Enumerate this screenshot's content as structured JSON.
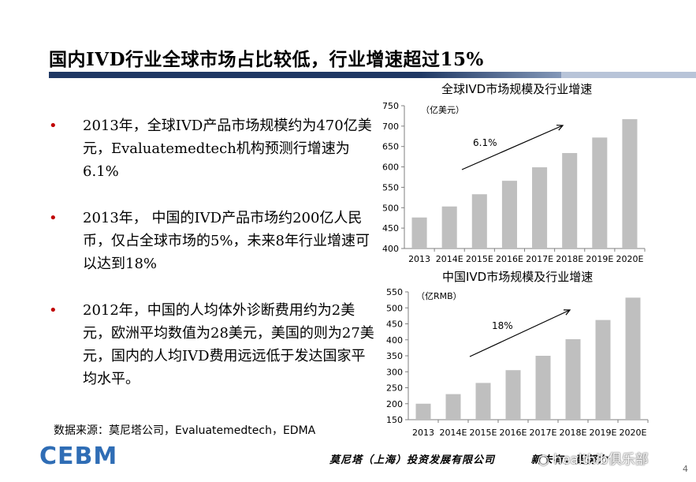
{
  "slide": {
    "title": "国内IVD行业全球市场占比较低，行业增速超过15%"
  },
  "bullets": [
    {
      "marker": "•",
      "text": "2013年，全球IVD产品市场规模约为470亿美元，Evaluatemedtech机构预测行增速为6.1%"
    },
    {
      "marker": "•",
      "text": "2013年， 中国的IVD产品市场约200亿人民币，仅占全球市场的5%，未来8年行业增速可以达到18%"
    },
    {
      "marker": "•",
      "text": "2012年，中国的人均体外诊断费用约为2美元，欧洲平均数值为28美元，美国的则为27美元，国内的人均IVD费用远远低于发达国家平均水平。"
    }
  ],
  "source_note": "数据来源：莫尼塔公司，Evaluatemedtech，EDMA",
  "footer": {
    "logo_text": "CEBM",
    "company": "莫尼塔（上海）投资发展有限公司",
    "slogan_tail": "新未有，更努力",
    "watermark": "healthib俱乐部",
    "page_number": "4"
  },
  "colors": {
    "bar": "#bfbfbf",
    "title_rule": "#1f3864",
    "bullet_marker": "#c00000",
    "axis": "#7f7f7f"
  },
  "chart_data": [
    {
      "type": "bar",
      "title": "全球IVD市场规模及行业增速",
      "unit_label": "（亿美元）",
      "categories": [
        "2013",
        "2014E",
        "2015E",
        "2016E",
        "2017E",
        "2018E",
        "2019E",
        "2020E"
      ],
      "values": [
        476,
        503,
        533,
        566,
        599,
        634,
        672,
        717
      ],
      "ylim": [
        400,
        750
      ],
      "yticks": [
        400,
        450,
        500,
        550,
        600,
        650,
        700,
        750
      ],
      "growth_annotation": "6.1%",
      "grid": false
    },
    {
      "type": "bar",
      "title": "中国IVD市场规模及行业增速",
      "unit_label": "（亿RMB）",
      "categories": [
        "2013",
        "2014E",
        "2015E",
        "2016E",
        "2017E",
        "2018E",
        "2019E",
        "2020E"
      ],
      "values": [
        200,
        230,
        265,
        305,
        350,
        402,
        462,
        532
      ],
      "ylim": [
        150,
        550
      ],
      "yticks": [
        150,
        200,
        250,
        300,
        350,
        400,
        450,
        500,
        550
      ],
      "growth_annotation": "18%",
      "grid": false
    }
  ]
}
